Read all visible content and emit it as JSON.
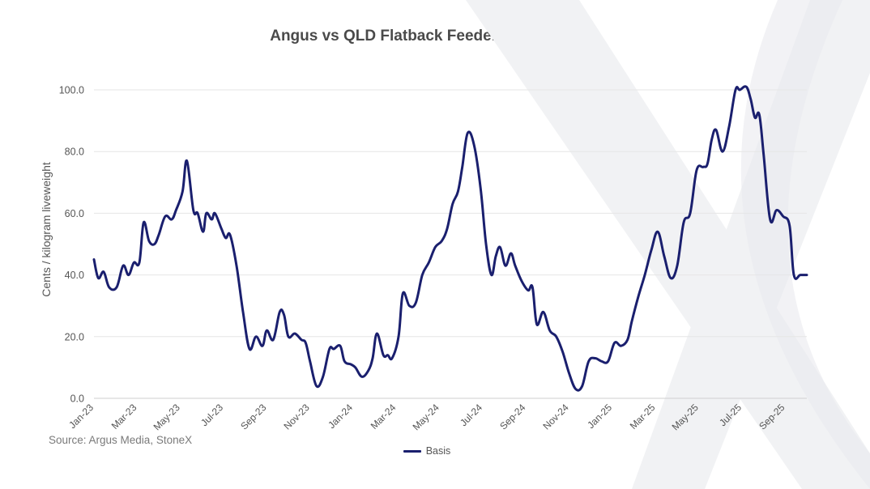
{
  "chart_data": {
    "type": "line",
    "title": "Angus vs QLD Flatback Feeder Steer basis",
    "ylabel": "Cents / kilogram liveweight",
    "xlabel": "",
    "source": "Source: Argus Media, StoneX",
    "ylim": [
      0,
      100
    ],
    "y_ticks": [
      "0.0",
      "20.0",
      "40.0",
      "60.0",
      "80.0",
      "100.0"
    ],
    "x_ticks": [
      "Jan-23",
      "Mar-23",
      "May-23",
      "Jul-23",
      "Sep-23",
      "Nov-23",
      "Jan-24",
      "Mar-24",
      "May-24",
      "Jul-24",
      "Sep-24",
      "Nov-24",
      "Jan-25",
      "Mar-25",
      "May-25",
      "Jul-25",
      "Sep-25"
    ],
    "x_range_months": [
      0,
      33
    ],
    "grid": true,
    "legend": "bottom-center",
    "color": "#1a1f6e",
    "series": [
      {
        "name": "Basis",
        "x": [
          0,
          0.2,
          0.45,
          0.7,
          1.05,
          1.35,
          1.6,
          1.85,
          2.1,
          2.3,
          2.55,
          2.8,
          3.0,
          3.3,
          3.6,
          3.8,
          4.1,
          4.3,
          4.6,
          4.8,
          5.05,
          5.2,
          5.45,
          5.6,
          5.9,
          6.1,
          6.3,
          6.6,
          6.9,
          7.2,
          7.5,
          7.8,
          8.0,
          8.3,
          8.6,
          8.8,
          9.0,
          9.3,
          9.6,
          9.8,
          10.0,
          10.3,
          10.6,
          10.9,
          11.1,
          11.4,
          11.6,
          11.9,
          12.1,
          12.4,
          12.7,
          12.9,
          13.1,
          13.4,
          13.6,
          13.8,
          14.1,
          14.3,
          14.6,
          14.9,
          15.2,
          15.5,
          15.8,
          16.1,
          16.35,
          16.6,
          16.85,
          17.05,
          17.3,
          17.6,
          17.9,
          18.15,
          18.4,
          18.6,
          18.8,
          19.05,
          19.3,
          19.5,
          19.8,
          20.1,
          20.3,
          20.5,
          20.8,
          21.1,
          21.4,
          21.7,
          22.0,
          22.3,
          22.6,
          22.9,
          23.2,
          23.5,
          23.8,
          24.1,
          24.4,
          24.7,
          24.9,
          25.2,
          25.5,
          25.8,
          26.1,
          26.4,
          26.7,
          27.0,
          27.3,
          27.6,
          27.9,
          28.2,
          28.4,
          28.6,
          28.8,
          29.1,
          29.4,
          29.7,
          29.9,
          30.2,
          30.4,
          30.6,
          30.8,
          31.0,
          31.3,
          31.6,
          31.9,
          32.2,
          32.4,
          32.7,
          33.0
        ],
        "values": [
          45,
          39,
          41,
          36,
          36,
          43,
          40,
          44,
          44,
          57,
          51,
          50,
          53,
          59,
          58,
          61,
          67,
          77,
          61,
          60,
          54,
          60,
          58,
          60,
          55,
          52,
          53,
          43,
          28,
          16,
          20,
          17,
          22,
          19,
          28,
          27,
          20,
          21,
          19,
          18,
          12,
          4,
          7,
          16,
          16,
          17,
          12,
          11,
          10,
          7,
          9,
          13,
          21,
          14,
          14,
          13,
          20,
          34,
          30,
          31,
          40,
          44,
          49,
          51,
          55,
          63,
          67,
          75,
          86,
          82,
          68,
          50,
          40,
          46,
          49,
          43,
          47,
          43,
          38,
          35,
          36,
          24,
          28,
          22,
          20,
          15,
          8,
          3,
          4,
          12,
          13,
          12,
          12,
          18,
          17,
          19,
          25,
          33,
          40,
          48,
          54,
          46,
          39,
          43,
          57,
          60,
          74,
          75,
          76,
          84,
          87,
          80,
          88,
          100,
          100,
          101,
          97,
          91,
          92,
          79,
          58,
          61,
          59,
          56,
          40,
          40,
          40
        ]
      }
    ]
  }
}
